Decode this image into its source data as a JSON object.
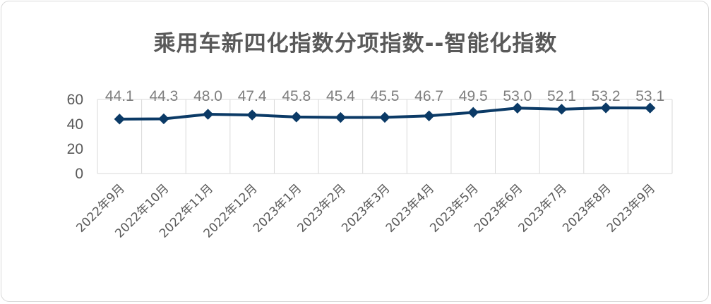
{
  "chart_data": {
    "type": "line",
    "title": "乘用车新四化指数分项指数--智能化指数",
    "categories": [
      "2022年9月",
      "2022年10月",
      "2022年11月",
      "2022年12月",
      "2023年1月",
      "2023年2月",
      "2023年3月",
      "2023年4月",
      "2023年5月",
      "2023年6月",
      "2023年7月",
      "2023年8月",
      "2023年9月"
    ],
    "values": [
      44.1,
      44.3,
      48.0,
      47.4,
      45.8,
      45.4,
      45.5,
      46.7,
      49.5,
      53.0,
      52.1,
      53.2,
      53.1
    ],
    "value_labels": [
      "44.1",
      "44.3",
      "48.0",
      "47.4",
      "45.8",
      "45.4",
      "45.5",
      "46.7",
      "49.5",
      "53.0",
      "52.1",
      "53.2",
      "53.1"
    ],
    "y_ticks": [
      "0",
      "20",
      "40",
      "60"
    ],
    "ylim": [
      0,
      60
    ],
    "grid": true,
    "line_color": "#0b3a66",
    "marker": "diamond"
  }
}
